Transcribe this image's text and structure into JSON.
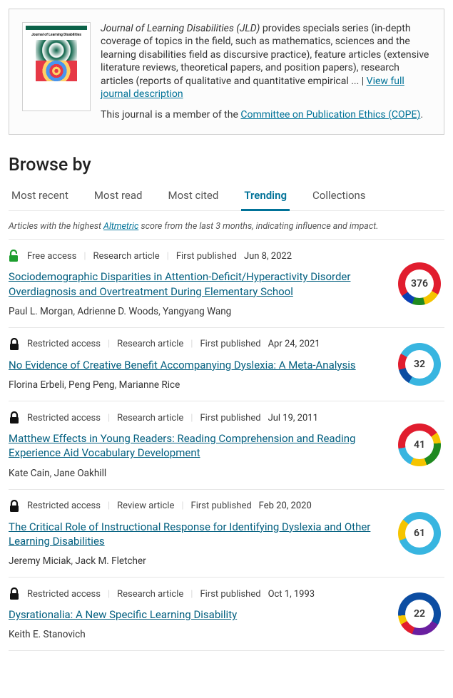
{
  "journal": {
    "title_em": "Journal of Learning Disabilities (JLD)",
    "cover_label": "Journal of Learning Disabilities",
    "cover_bar_color": "#0b6248",
    "desc_suffix": " provides specials series (in-depth coverage of topics in the field, such as mathematics, sciences and the learning disabilities field as discursive practice), feature articles (extensive literature reviews, theoretical papers, and position papers), research articles (reports of qualitative and quantitative empirical ... ",
    "view_full_link": "View full journal description",
    "member_prefix": "This journal is a member of the ",
    "member_link": "Committee on Publication Ethics (COPE)",
    "member_suffix": "."
  },
  "browse_heading": "Browse by",
  "tabs": {
    "t0": "Most recent",
    "t1": "Most read",
    "t2": "Most cited",
    "t3": "Trending",
    "t4": "Collections",
    "active_index": 3
  },
  "subnote": {
    "pre": "Articles with the highest ",
    "link": "Altmetric",
    "post": " score from the last 3 months, indicating influence and impact."
  },
  "labels": {
    "free_access": "Free access",
    "restricted_access": "Restricted access",
    "research_article": "Research article",
    "review_article": "Review article",
    "first_published": "First published",
    "sep": "|"
  },
  "colors": {
    "link": "#007298",
    "accent": "#007298",
    "text": "#333333",
    "border": "#e6e6e6",
    "free_lock": "#1d9e2f",
    "restricted_lock": "#111111"
  },
  "articles": [
    {
      "access": "free",
      "type": "Research article",
      "date": "Jun 8, 2022",
      "title": "Sociodemographic Disparities in Attention-Deficit/Hyperactivity Disorder Overdiagnosis and Overtreatment During Elementary School",
      "authors": [
        "Paul L. Morgan",
        "Adrienne D. Woods",
        "Yangyang Wang"
      ],
      "altmetric": {
        "score": 376,
        "gradient": "conic-gradient(#e11d2e 0 120deg, #f5c400 120deg 165deg, #1f8a20 165deg 200deg, #0a3fb3 200deg 235deg, #e11d2e 235deg 360deg)"
      }
    },
    {
      "access": "restricted",
      "type": "Research article",
      "date": "Apr 24, 2021",
      "title": "No Evidence of Creative Benefit Accompanying Dyslexia: A Meta-Analysis",
      "authors": [
        "Florina Erbeli",
        "Peng Peng",
        "Marianne Rice"
      ],
      "altmetric": {
        "score": 32,
        "gradient": "conic-gradient(#38b5e0 0 210deg, #0c4da2 210deg 255deg, #e11d2e 255deg 300deg, #38b5e0 300deg 360deg)"
      }
    },
    {
      "access": "restricted",
      "type": "Research article",
      "date": "Jul 19, 2011",
      "title": "Matthew Effects in Young Readers: Reading Comprehension and Reading Experience Aid Vocabulary Development",
      "authors": [
        "Kate Cain",
        "Jane Oakhill"
      ],
      "altmetric": {
        "score": 41,
        "gradient": "conic-gradient(#e11d2e 0 55deg, #f5c400 55deg 85deg, #1f8a20 85deg 160deg, #f5c400 160deg 205deg, #38b5e0 205deg 260deg, #e11d2e 260deg 360deg)"
      }
    },
    {
      "access": "restricted",
      "type": "Review article",
      "date": "Feb 20, 2020",
      "title": "The Critical Role of Instructional Response for Identifying Dyslexia and Other Learning Disabilities",
      "authors": [
        "Jeremy Miciak",
        "Jack M. Fletcher"
      ],
      "altmetric": {
        "score": 61,
        "gradient": "conic-gradient(#38b5e0 0 250deg, #f5c400 250deg 310deg, #38b5e0 310deg 360deg)"
      }
    },
    {
      "access": "restricted",
      "type": "Research article",
      "date": "Oct 1, 1993",
      "title": "Dysrationalia: A New Specific Learning Disability",
      "authors": [
        "Keith E. Stanovich"
      ],
      "altmetric": {
        "score": 22,
        "gradient": "conic-gradient(#0c4da2 0 120deg, #6a1fa0 120deg 200deg, #e11d2e 200deg 240deg, #f5c400 240deg 265deg, #0c4da2 265deg 360deg)"
      }
    }
  ]
}
